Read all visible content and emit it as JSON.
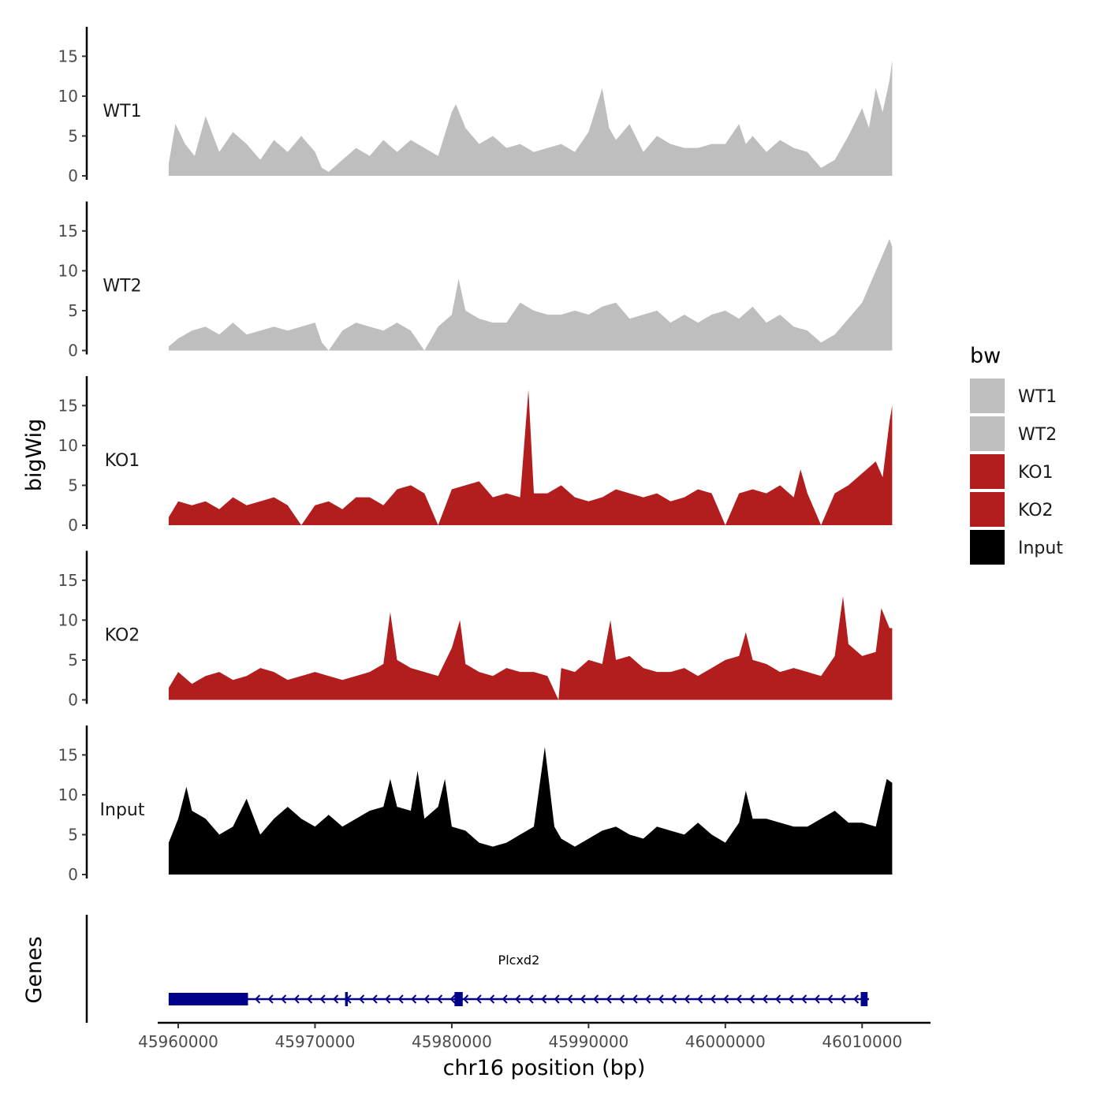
{
  "chart_data": {
    "type": "area",
    "chromosome": "chr16",
    "xlabel": "chr16 position (bp)",
    "ylabel": "bigWig",
    "genes_label": "Genes",
    "xlim": [
      45958500,
      46015000
    ],
    "data_range": [
      45959300,
      46012200
    ],
    "ylim": [
      0,
      18
    ],
    "y_ticks": [
      {
        "value": 0,
        "label": "0"
      },
      {
        "value": 5,
        "label": "5"
      },
      {
        "value": 10,
        "label": "10"
      },
      {
        "value": 15,
        "label": "15"
      }
    ],
    "x_ticks": [
      {
        "value": 45960000,
        "label": "45960000"
      },
      {
        "value": 45970000,
        "label": "45970000"
      },
      {
        "value": 45980000,
        "label": "45980000"
      },
      {
        "value": 45990000,
        "label": "45990000"
      },
      {
        "value": 46000000,
        "label": "46000000"
      },
      {
        "value": 46010000,
        "label": "46010000"
      }
    ],
    "legend": {
      "title": "bw",
      "entries": [
        {
          "label": "WT1",
          "color": "#bebebe"
        },
        {
          "label": "WT2",
          "color": "#bebebe"
        },
        {
          "label": "KO1",
          "color": "#b21e1e"
        },
        {
          "label": "KO2",
          "color": "#b21e1e"
        },
        {
          "label": "Input",
          "color": "#000000"
        }
      ]
    },
    "tracks": [
      {
        "name": "WT1",
        "label": "WT1",
        "color": "#bebebe",
        "x": [
          45959300,
          45959800,
          45960500,
          45961200,
          45962000,
          45963000,
          45964000,
          45965000,
          45966000,
          45967000,
          45968000,
          45969000,
          45970000,
          45970500,
          45971000,
          45972000,
          45973000,
          45974000,
          45975000,
          45976000,
          45977000,
          45978000,
          45979000,
          45980000,
          45980300,
          45981000,
          45982000,
          45983000,
          45984000,
          45985000,
          45986000,
          45987000,
          45988000,
          45989000,
          45990000,
          45991000,
          45991500,
          45992000,
          45993000,
          45994000,
          45995000,
          45996000,
          45997000,
          45998000,
          45999000,
          46000000,
          46001000,
          46001500,
          46002000,
          46003000,
          46004000,
          46005000,
          46006000,
          46007000,
          46008000,
          46009000,
          46010000,
          46010500,
          46011000,
          46011500,
          46012000,
          46012200
        ],
        "y": [
          1.5,
          6.5,
          4,
          2.5,
          7.5,
          3,
          5.5,
          4,
          2,
          4.5,
          3,
          5,
          3,
          1,
          0.5,
          2,
          3.5,
          2.5,
          4.5,
          3,
          4.5,
          3.5,
          2.5,
          8,
          9,
          6,
          4,
          5,
          3.5,
          4,
          3,
          3.5,
          4,
          3,
          5.5,
          11,
          6,
          4.5,
          6.5,
          3,
          5,
          4,
          3.5,
          3.5,
          4,
          4,
          6.5,
          4,
          5,
          3,
          4.5,
          3.5,
          3,
          1,
          2,
          5,
          8.5,
          6,
          11,
          8,
          12,
          14.5
        ]
      },
      {
        "name": "WT2",
        "label": "WT2",
        "color": "#bebebe",
        "x": [
          45959300,
          45960000,
          45961000,
          45962000,
          45963000,
          45964000,
          45965000,
          45966000,
          45967000,
          45968000,
          45969000,
          45970000,
          45970500,
          45971000,
          45972000,
          45973000,
          45974000,
          45975000,
          45976000,
          45977000,
          45978000,
          45979000,
          45980000,
          45980500,
          45981000,
          45982000,
          45983000,
          45984000,
          45985000,
          45986000,
          45987000,
          45988000,
          45989000,
          45990000,
          45991000,
          45992000,
          45993000,
          45994000,
          45995000,
          45996000,
          45997000,
          45998000,
          45999000,
          46000000,
          46001000,
          46002000,
          46003000,
          46004000,
          46005000,
          46006000,
          46007000,
          46008000,
          46009000,
          46010000,
          46010500,
          46011000,
          46011500,
          46012000,
          46012200
        ],
        "y": [
          0.5,
          1.5,
          2.5,
          3,
          2,
          3.5,
          2,
          2.5,
          3,
          2.5,
          3,
          3.5,
          1,
          0,
          2.5,
          3.5,
          3,
          2.5,
          3.5,
          2.5,
          0,
          3,
          4.5,
          9,
          5,
          4,
          3.5,
          3.5,
          6,
          5,
          4.5,
          4.5,
          5,
          4.5,
          5.5,
          6,
          4,
          4.5,
          5,
          3.5,
          4.5,
          3.5,
          4.5,
          5,
          4,
          5.5,
          3.5,
          4.5,
          3,
          2.5,
          1,
          2,
          4,
          6,
          8,
          10,
          12,
          14,
          13
        ]
      },
      {
        "name": "KO1",
        "label": "KO1",
        "color": "#b21e1e",
        "x": [
          45959300,
          45960000,
          45961000,
          45962000,
          45963000,
          45964000,
          45965000,
          45966000,
          45967000,
          45968000,
          45969000,
          45970000,
          45971000,
          45972000,
          45973000,
          45974000,
          45975000,
          45976000,
          45977000,
          45978000,
          45979000,
          45980000,
          45981000,
          45982000,
          45983000,
          45984000,
          45985000,
          45985600,
          45986000,
          45987000,
          45988000,
          45989000,
          45990000,
          45991000,
          45992000,
          45993000,
          45994000,
          45995000,
          45996000,
          45997000,
          45998000,
          45999000,
          46000000,
          46001000,
          46002000,
          46003000,
          46004000,
          46005000,
          46005500,
          46006000,
          46007000,
          46008000,
          46009000,
          46010000,
          46011000,
          46011500,
          46012000,
          46012200
        ],
        "y": [
          1,
          3,
          2.5,
          3,
          2,
          3.5,
          2.5,
          3,
          3.5,
          2.5,
          0,
          2.5,
          3,
          2,
          3.5,
          3.5,
          2.5,
          4.5,
          5,
          4,
          0,
          4.5,
          5,
          5.5,
          3.5,
          4,
          3.5,
          17,
          4,
          4,
          5,
          3.5,
          3,
          3.5,
          4.5,
          4,
          3.5,
          4,
          3,
          3.5,
          4.5,
          4,
          0,
          4,
          4.5,
          4,
          5,
          3.5,
          7,
          4,
          0,
          4,
          5,
          6.5,
          8,
          6,
          13,
          15
        ]
      },
      {
        "name": "KO2",
        "label": "KO2",
        "color": "#b21e1e",
        "x": [
          45959300,
          45960000,
          45961000,
          45962000,
          45963000,
          45964000,
          45965000,
          45966000,
          45967000,
          45968000,
          45969000,
          45970000,
          45971000,
          45972000,
          45973000,
          45974000,
          45975000,
          45975500,
          45976000,
          45977000,
          45978000,
          45979000,
          45980000,
          45980600,
          45981000,
          45982000,
          45983000,
          45984000,
          45985000,
          45986000,
          45987000,
          45987800,
          45988000,
          45989000,
          45990000,
          45991000,
          45991600,
          45992000,
          45993000,
          45994000,
          45995000,
          45996000,
          45997000,
          45998000,
          45999000,
          46000000,
          46001000,
          46001500,
          46002000,
          46003000,
          46004000,
          46005000,
          46006000,
          46007000,
          46008000,
          46008600,
          46009000,
          46010000,
          46011000,
          46011400,
          46012000,
          46012200
        ],
        "y": [
          1.5,
          3.5,
          2,
          3,
          3.5,
          2.5,
          3,
          4,
          3.5,
          2.5,
          3,
          3.5,
          3,
          2.5,
          3,
          3.5,
          4.5,
          11,
          5,
          4,
          3.5,
          3,
          6.5,
          10,
          4.5,
          3.5,
          3,
          4,
          3.5,
          3.5,
          3,
          0,
          4,
          3.5,
          5,
          4.5,
          10,
          5,
          5.5,
          4,
          3.5,
          3.5,
          4,
          3,
          4,
          5,
          5.5,
          8.5,
          5,
          4.5,
          3.5,
          4,
          3.5,
          3,
          5.5,
          13,
          7,
          5.5,
          6,
          11.5,
          9,
          9
        ]
      },
      {
        "name": "Input",
        "label": "Input",
        "color": "#000000",
        "x": [
          45959300,
          45960000,
          45960600,
          45961000,
          45962000,
          45963000,
          45964000,
          45965000,
          45966000,
          45967000,
          45968000,
          45969000,
          45970000,
          45971000,
          45972000,
          45973000,
          45974000,
          45975000,
          45975500,
          45976000,
          45977000,
          45977500,
          45978000,
          45979000,
          45979500,
          45980000,
          45981000,
          45982000,
          45983000,
          45984000,
          45985000,
          45986000,
          45986800,
          45987500,
          45988000,
          45989000,
          45990000,
          45991000,
          45992000,
          45993000,
          45994000,
          45995000,
          45996000,
          45997000,
          45998000,
          45999000,
          46000000,
          46001000,
          46001500,
          46002000,
          46003000,
          46004000,
          46005000,
          46006000,
          46007000,
          46008000,
          46009000,
          46010000,
          46011000,
          46011800,
          46012200
        ],
        "y": [
          4,
          7,
          11,
          8,
          7,
          5,
          6,
          9.5,
          5,
          7,
          8.5,
          7,
          6,
          7.5,
          6,
          7,
          8,
          8.5,
          12,
          8.5,
          8,
          13,
          7,
          8.5,
          12,
          6,
          5.5,
          4,
          3.5,
          4,
          5,
          6,
          16,
          6,
          4.5,
          3.5,
          4.5,
          5.5,
          6,
          5,
          4.5,
          6,
          5.5,
          5,
          6.5,
          5,
          4,
          6.5,
          10.5,
          7,
          7,
          6.5,
          6,
          6,
          7,
          8,
          6.5,
          6.5,
          6,
          12,
          11.5
        ]
      }
    ],
    "gene": {
      "name": "Plcxd2",
      "strand": "-",
      "start": 45959300,
      "end": 46010500,
      "color": "#00008b",
      "utr_block": [
        45959300,
        45965100
      ],
      "exons": [
        {
          "start": 45972200,
          "end": 45972400
        },
        {
          "start": 45980200,
          "end": 45980800
        },
        {
          "start": 46009900,
          "end": 46010400
        }
      ]
    }
  }
}
